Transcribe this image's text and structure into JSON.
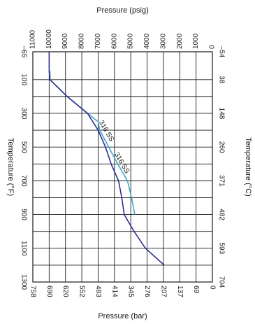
{
  "chart_data": {
    "type": "line",
    "orientation": "rotated-90-clockwise",
    "grid": true,
    "axes": {
      "top": {
        "label": "Pressure (psig)",
        "ticks": [
          0,
          1000,
          2000,
          3000,
          4000,
          5000,
          6000,
          7000,
          8000,
          9000,
          10000,
          11000
        ],
        "range": [
          0,
          11000
        ]
      },
      "bottom": {
        "label": "Pressure (bar)",
        "ticks": [
          "0",
          "69",
          "137",
          "207",
          "276",
          "345",
          "414",
          "483",
          "552",
          "620",
          "690",
          "758"
        ]
      },
      "left": {
        "label": "Temperature (°F)",
        "ticks": [
          "–65",
          "100",
          "300",
          "500",
          "700",
          "900",
          "1100",
          "1300"
        ],
        "range": [
          -65,
          1300
        ]
      },
      "right": {
        "label": "Temperature (°C)",
        "ticks": [
          "–54",
          "38",
          "148",
          "260",
          "371",
          "482",
          "593",
          "704"
        ]
      }
    },
    "series": [
      {
        "name": "316 SS",
        "color": "#3fa8c9",
        "temperature_F": [
          50,
          100,
          200,
          300,
          350,
          400,
          500,
          600,
          700,
          800,
          900
        ],
        "pressure_psig": [
          9950,
          9950,
          8900,
          7650,
          7000,
          6900,
          6350,
          5800,
          5200,
          4950,
          4750
        ]
      },
      {
        "name": "316 SS",
        "color": "#2b2f8f",
        "temperature_F": [
          -65,
          0,
          50,
          100,
          200,
          300,
          400,
          500,
          600,
          700,
          800,
          900,
          1000,
          1100,
          1200
        ],
        "pressure_psig": [
          10000,
          10000,
          10000,
          9950,
          8900,
          7650,
          7000,
          6550,
          6200,
          5750,
          5550,
          5400,
          4800,
          4100,
          2950
        ]
      }
    ]
  }
}
